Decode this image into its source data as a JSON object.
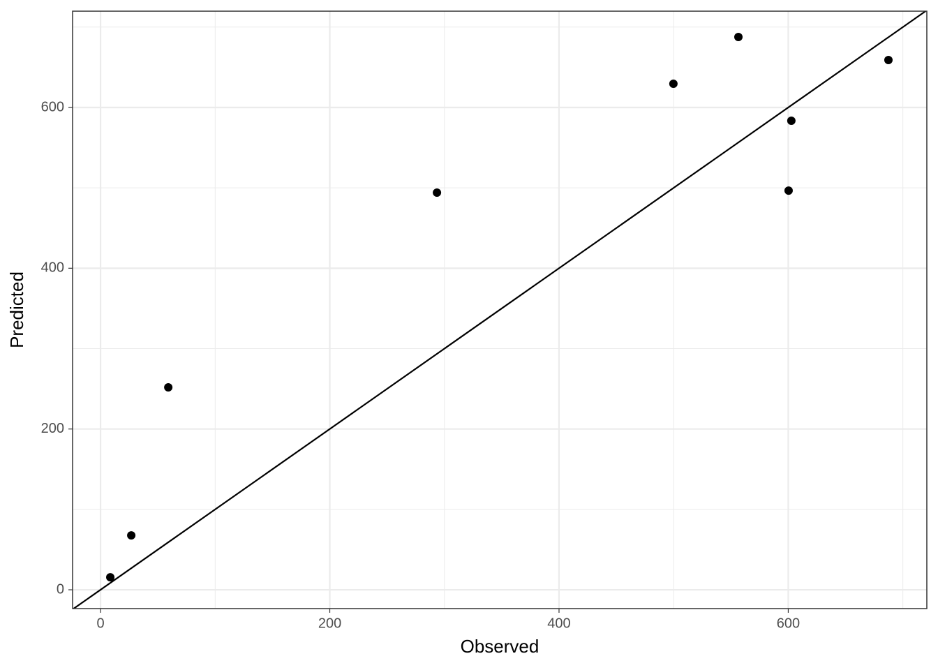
{
  "chart_data": {
    "type": "scatter",
    "xlabel": "Observed",
    "ylabel": "Predicted",
    "x": [
      8.5,
      26.8,
      59.1,
      293.5,
      499.8,
      556.5,
      600.3,
      602.7,
      687.4
    ],
    "values": [
      15.6,
      67.7,
      251.8,
      494.1,
      629.5,
      687.7,
      496.6,
      583.5,
      659.0
    ],
    "color": "#000000",
    "xlim": [
      -24.4,
      720.9
    ],
    "ylim": [
      -23.4,
      719.8
    ],
    "xticks": [
      0,
      200,
      400,
      600
    ],
    "yticks": [
      0,
      200,
      400,
      600
    ],
    "xminor": [
      100,
      300,
      500,
      700
    ],
    "yminor": [
      100,
      300,
      500,
      700
    ],
    "grid": true,
    "identity_line": true
  }
}
